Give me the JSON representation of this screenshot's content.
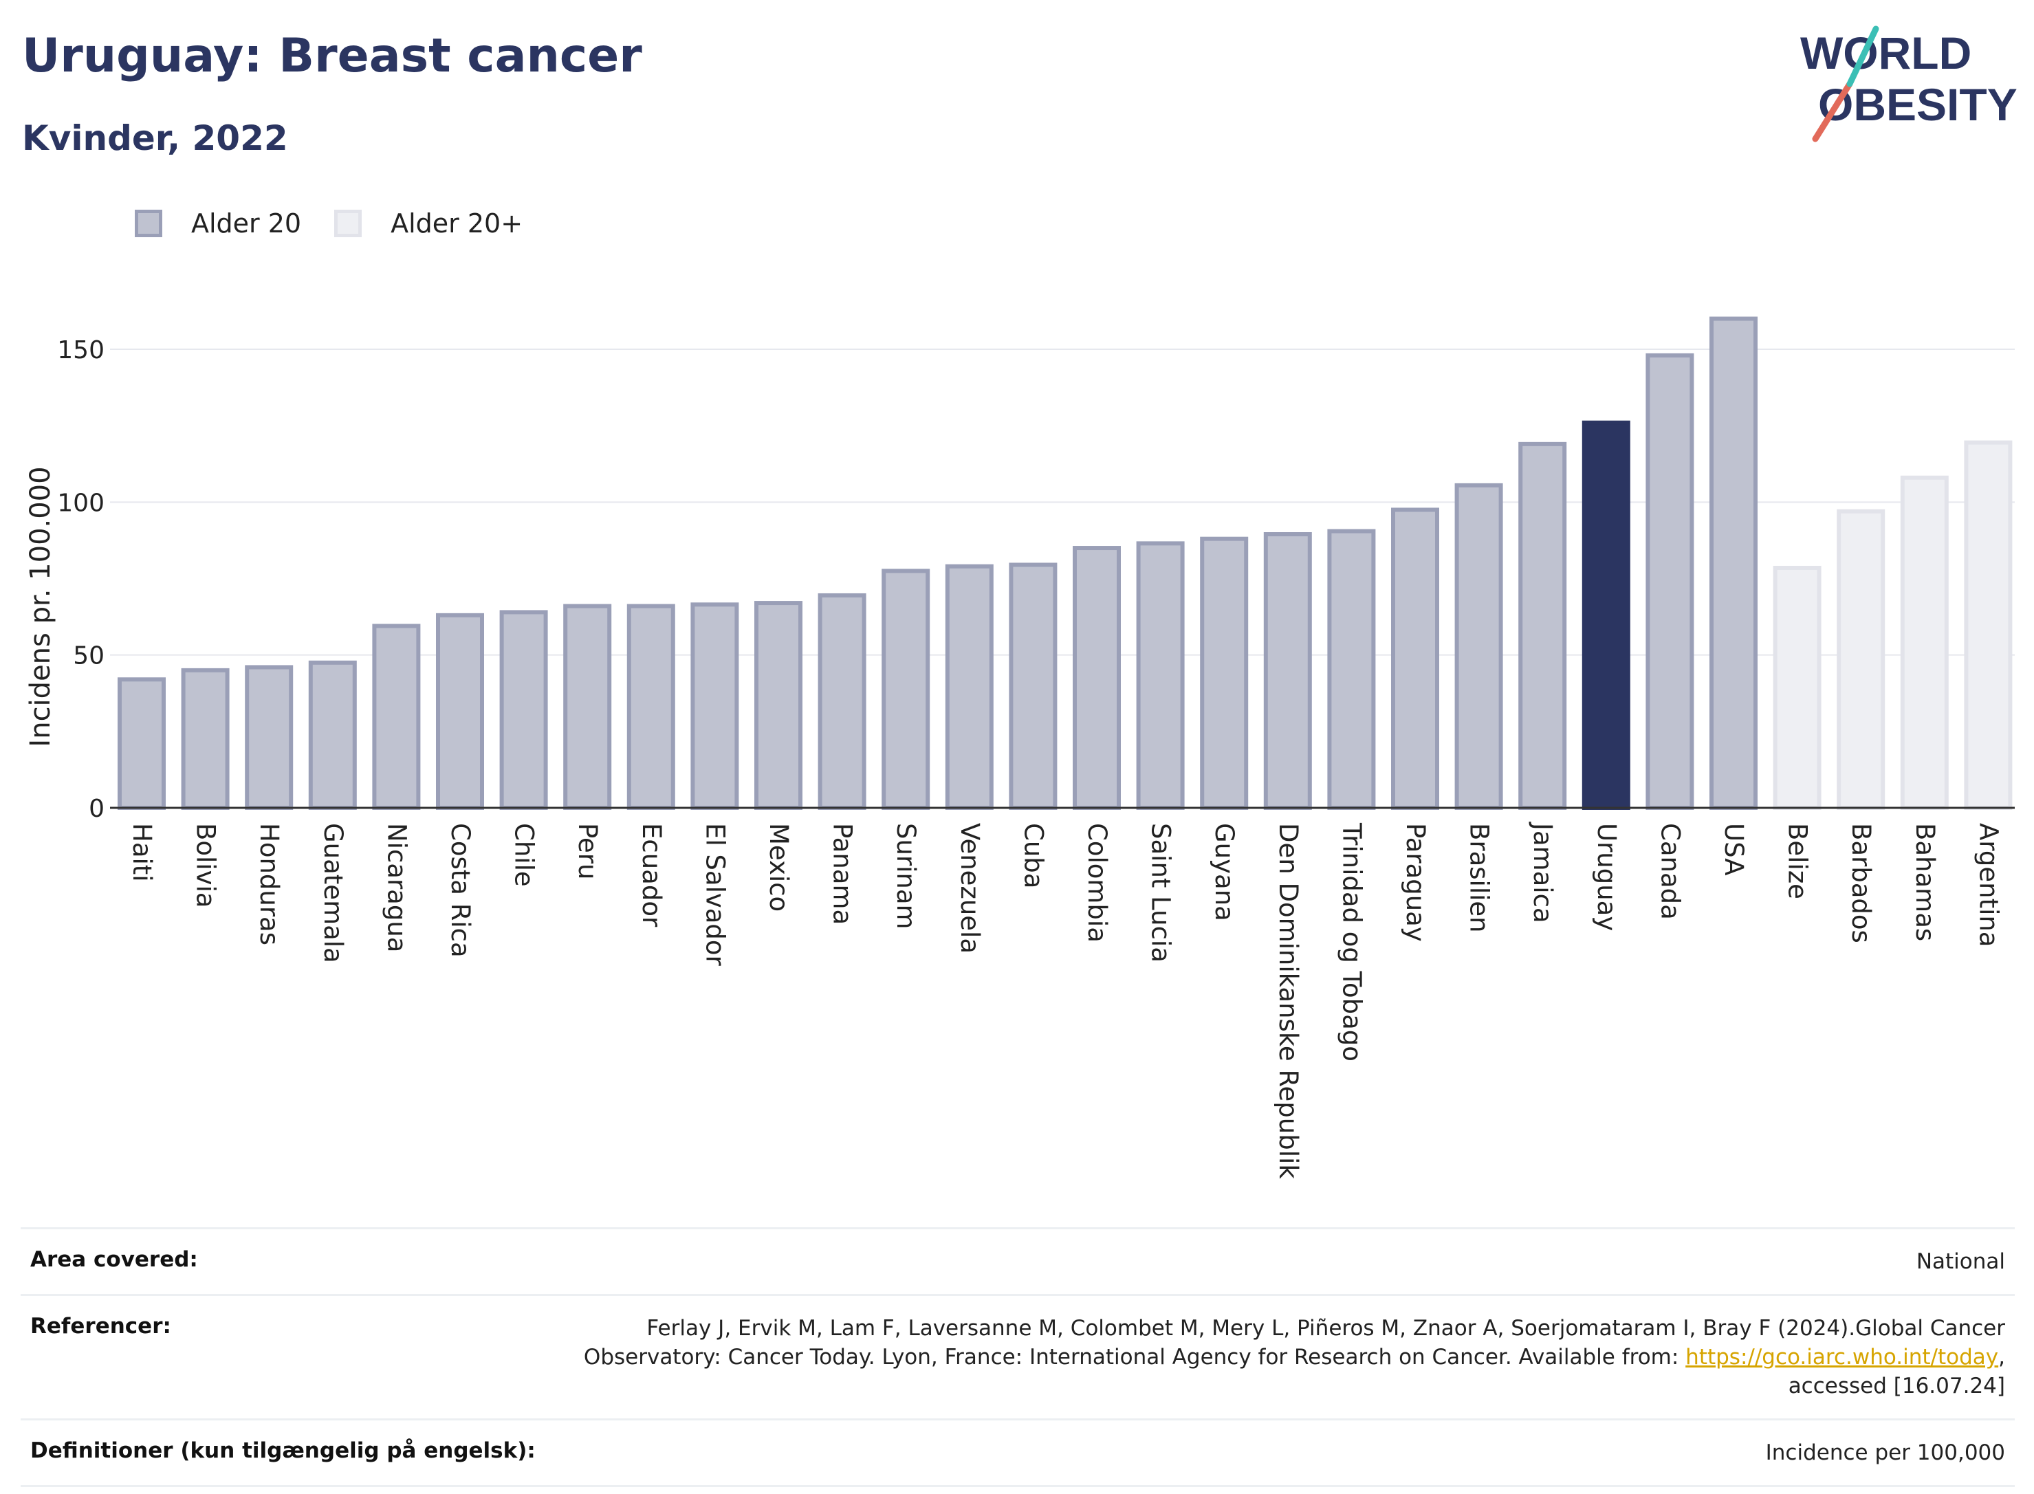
{
  "header": {
    "title": "Uruguay: Breast cancer",
    "subtitle": "Kvinder, 2022"
  },
  "logo": {
    "line1": "WORLD",
    "line2": "OBESITY",
    "colors": {
      "text": "#2b3561",
      "slash_red": "#e26a5a",
      "slash_teal": "#3bbfb5"
    }
  },
  "legend": {
    "items": [
      {
        "label": "Alder 20",
        "color": "#bfc2d0",
        "border": "#9a9fb7"
      },
      {
        "label": "Alder 20+",
        "color": "#eeeff3",
        "border": "#e2e3ea"
      }
    ]
  },
  "chart_data": {
    "type": "bar",
    "ylabel": "Incidens pr. 100.000",
    "xlabel": "",
    "ylim": [
      0,
      175
    ],
    "yticks": [
      0,
      50,
      100,
      150
    ],
    "grid": true,
    "legend_position": "top-left",
    "highlight_color": "#2b3561",
    "categories": [
      "Haiti",
      "Bolivia",
      "Honduras",
      "Guatemala",
      "Nicaragua",
      "Costa Rica",
      "Chile",
      "Peru",
      "Ecuador",
      "El Salvador",
      "Mexico",
      "Panama",
      "Surinam",
      "Venezuela",
      "Cuba",
      "Colombia",
      "Saint Lucia",
      "Guyana",
      "Den Dominikanske Republik",
      "Trinidad og Tobago",
      "Paraguay",
      "Brasilien",
      "Jamaica",
      "Uruguay",
      "Canada",
      "USA",
      "Belize",
      "Barbados",
      "Bahamas",
      "Argentina"
    ],
    "values": [
      42,
      45,
      46,
      47.5,
      59.5,
      63,
      64,
      66,
      66,
      66.5,
      67,
      69.5,
      77.5,
      79,
      79.5,
      85,
      86.5,
      88,
      89.5,
      90.5,
      97.5,
      105.5,
      119,
      126,
      148,
      160,
      78.5,
      97,
      108,
      119.5
    ],
    "groups": [
      "Alder 20",
      "Alder 20",
      "Alder 20",
      "Alder 20",
      "Alder 20",
      "Alder 20",
      "Alder 20",
      "Alder 20",
      "Alder 20",
      "Alder 20",
      "Alder 20",
      "Alder 20",
      "Alder 20",
      "Alder 20",
      "Alder 20",
      "Alder 20",
      "Alder 20",
      "Alder 20",
      "Alder 20",
      "Alder 20",
      "Alder 20",
      "Alder 20",
      "Alder 20",
      "Alder 20",
      "Alder 20",
      "Alder 20",
      "Alder 20+",
      "Alder 20+",
      "Alder 20+",
      "Alder 20+"
    ],
    "highlight": "Uruguay"
  },
  "info": {
    "area_label": "Area covered:",
    "area_value": "National",
    "ref_label": "Referencer:",
    "ref_line1": "Ferlay J, Ervik M, Lam F, Laversanne M, Colombet M, Mery L, Piñeros M, Znaor A, Soerjomataram I, Bray F (2024).Global Cancer",
    "ref_line2_pre": "Observatory: Cancer Today. Lyon, France: International Agency for Research on Cancer. Available from: ",
    "ref_link": "https://gco.iarc.who.int/today",
    "ref_line2_post": ",",
    "ref_line3": "accessed [16.07.24]",
    "def_label": "Definitioner (kun tilgængelig på engelsk):",
    "def_value": "Incidence per 100,000"
  }
}
